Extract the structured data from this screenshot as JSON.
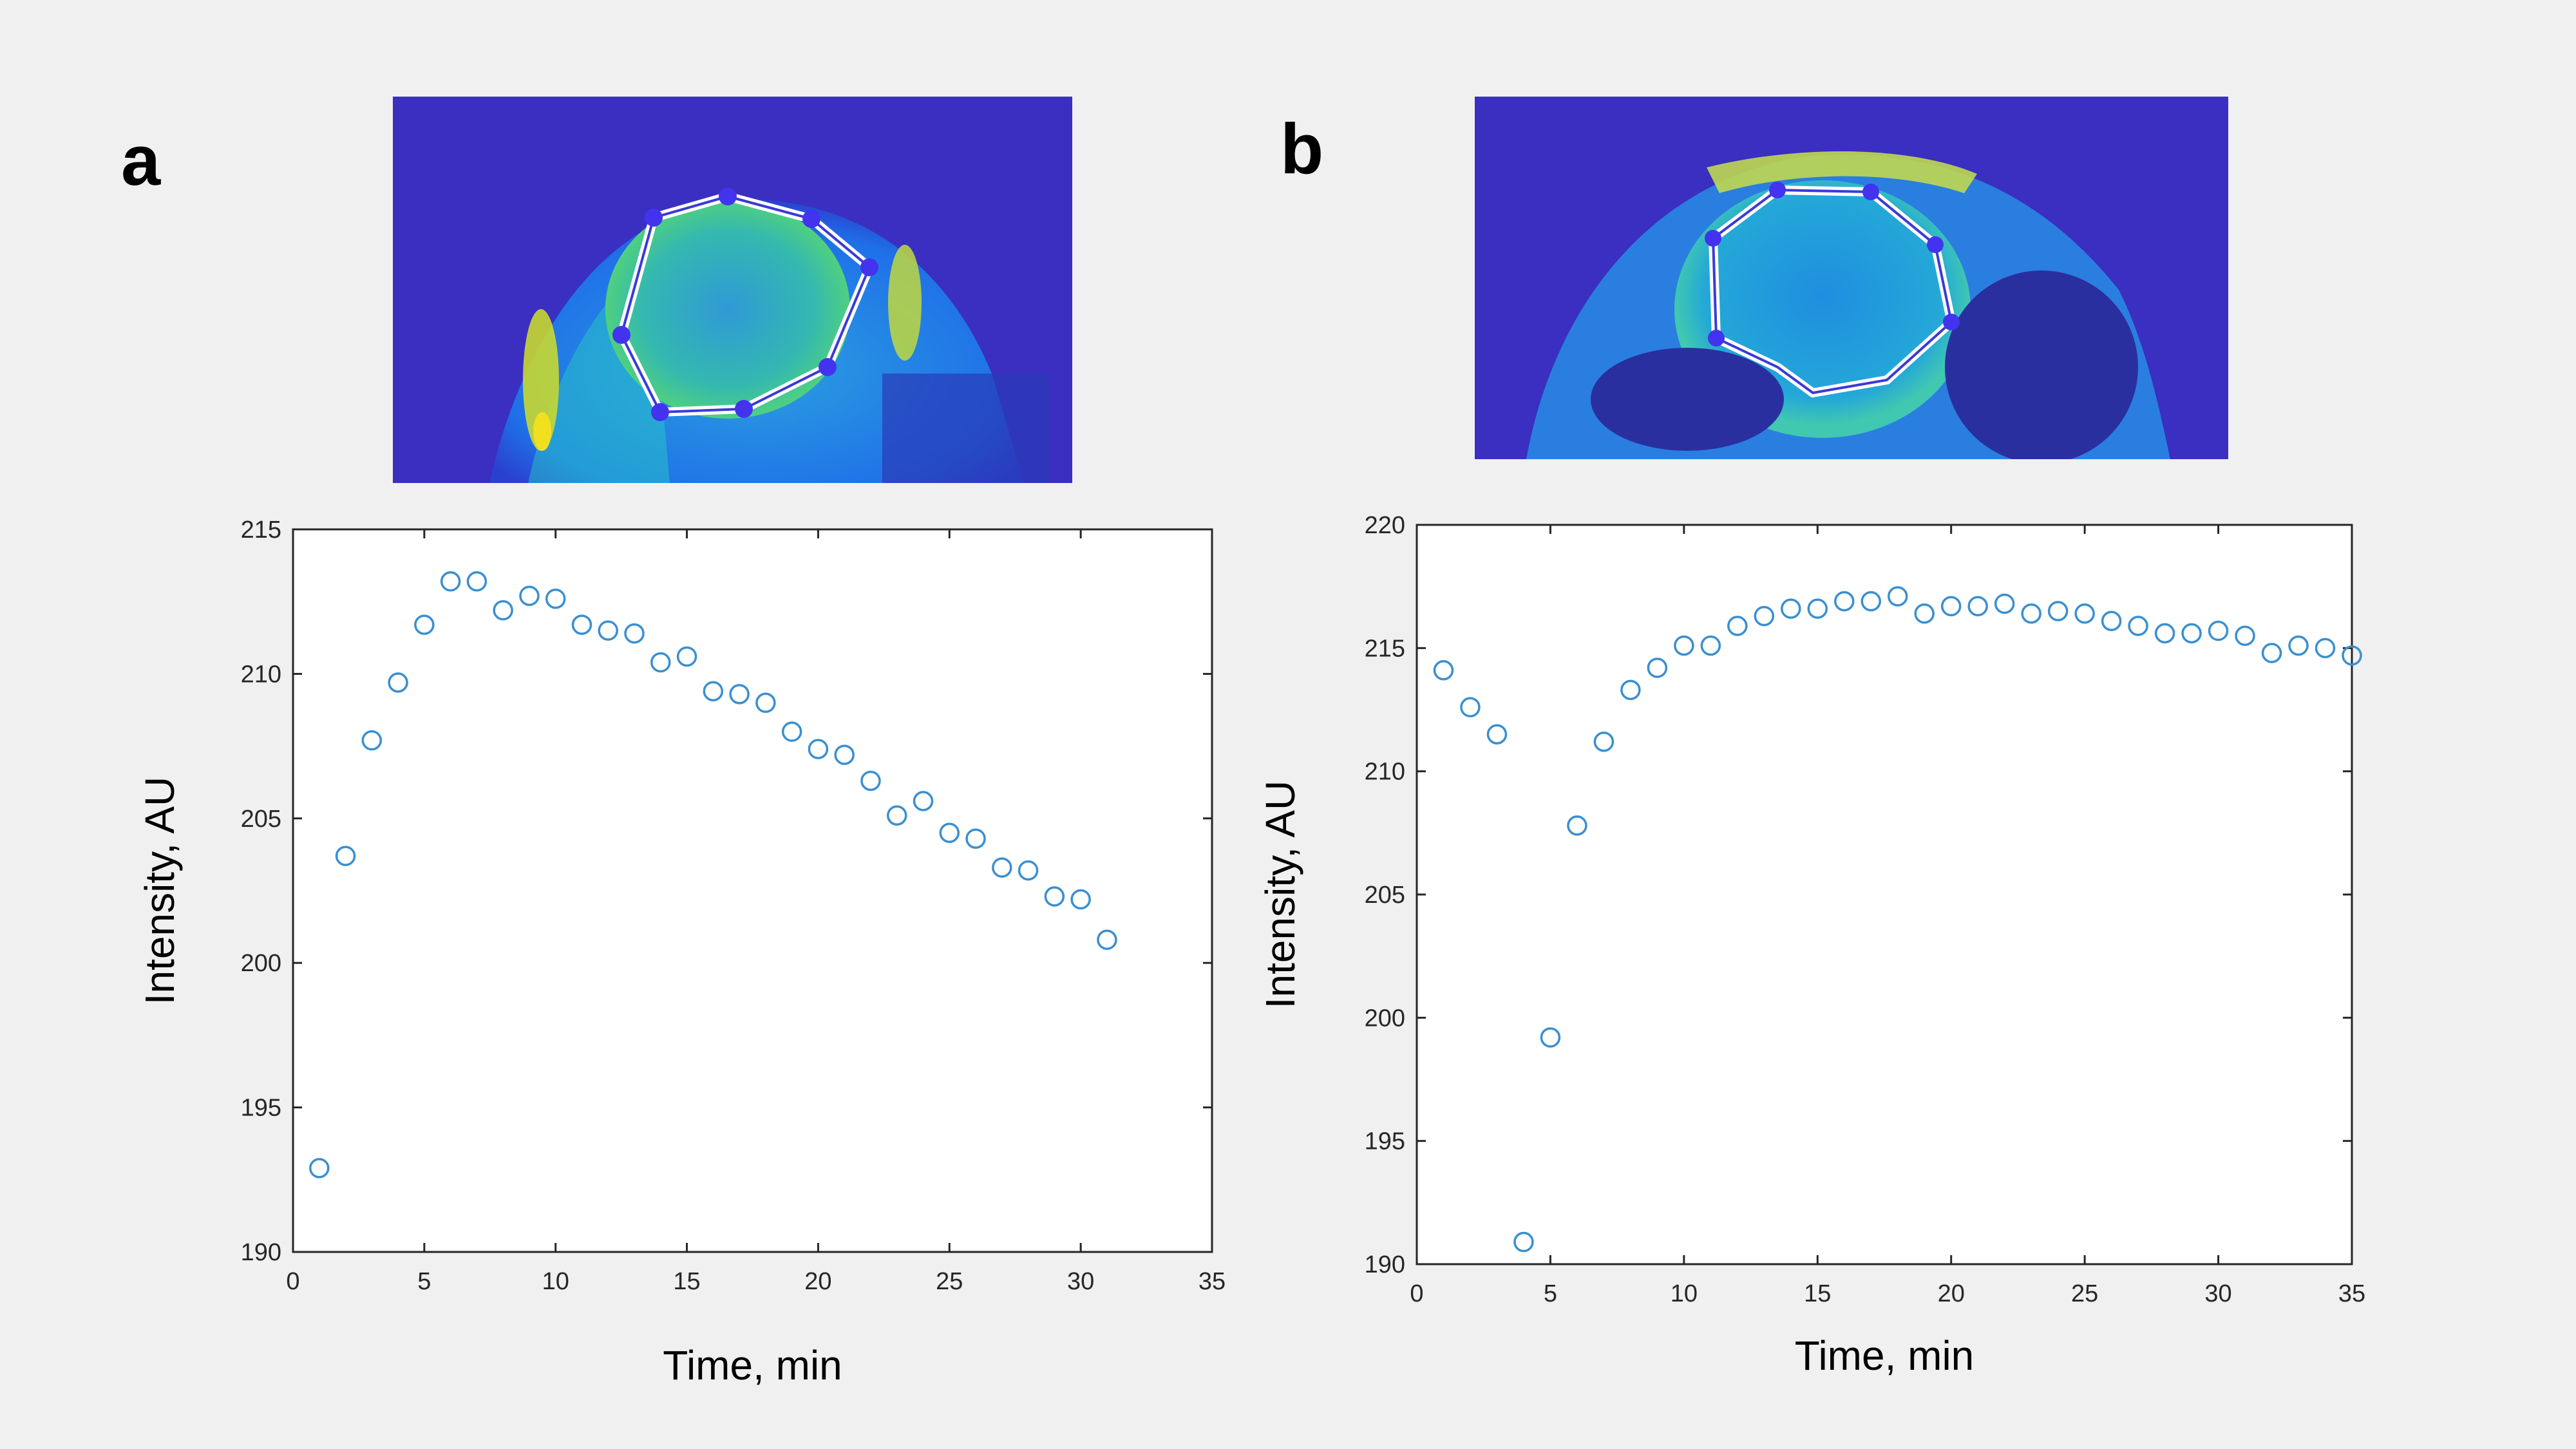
{
  "panels": {
    "a": {
      "letter": "a",
      "image_description_icon": "mri-heatmap-icon"
    },
    "b": {
      "letter": "b",
      "image_description_icon": "mri-heatmap-icon"
    }
  },
  "colors": {
    "marker": "#3a8fd0",
    "heat_background": "#3a2fc0",
    "roi_outline": "#ffffff",
    "roi_vertex": "#4433ee"
  },
  "chart_data": [
    {
      "type": "scatter",
      "panel": "a",
      "title": "",
      "xlabel": "Time, min",
      "ylabel": "Intensity, AU",
      "xlim": [
        0,
        35
      ],
      "ylim": [
        190,
        215
      ],
      "xticks": [
        0,
        5,
        10,
        15,
        20,
        25,
        30,
        35
      ],
      "yticks": [
        190,
        195,
        200,
        205,
        210,
        215
      ],
      "grid": false,
      "marker": "open-circle",
      "x": [
        1,
        2,
        3,
        4,
        5,
        6,
        7,
        8,
        9,
        10,
        11,
        12,
        13,
        14,
        15,
        16,
        17,
        18,
        19,
        20,
        21,
        22,
        23,
        24,
        25,
        26,
        27,
        28,
        29,
        30,
        31
      ],
      "y": [
        192.9,
        203.7,
        207.7,
        209.7,
        211.7,
        213.2,
        213.2,
        212.2,
        212.7,
        212.6,
        211.7,
        211.5,
        211.4,
        210.4,
        210.6,
        209.4,
        209.3,
        209.0,
        208.0,
        207.4,
        207.2,
        206.3,
        205.1,
        205.6,
        204.5,
        204.3,
        203.3,
        203.2,
        202.3,
        202.2,
        200.8
      ]
    },
    {
      "type": "scatter",
      "panel": "b",
      "title": "",
      "xlabel": "Time, min",
      "ylabel": "Intensity, AU",
      "xlim": [
        0,
        35
      ],
      "ylim": [
        190,
        220
      ],
      "xticks": [
        0,
        5,
        10,
        15,
        20,
        25,
        30,
        35
      ],
      "yticks": [
        190,
        195,
        200,
        205,
        210,
        215,
        220
      ],
      "grid": false,
      "marker": "open-circle",
      "x": [
        1,
        2,
        3,
        4,
        5,
        6,
        7,
        8,
        9,
        10,
        11,
        12,
        13,
        14,
        15,
        16,
        17,
        18,
        19,
        20,
        21,
        22,
        23,
        24,
        25,
        26,
        27,
        28,
        29,
        30,
        31,
        32,
        33,
        34,
        35
      ],
      "y": [
        214.1,
        212.6,
        211.5,
        190.9,
        199.2,
        207.8,
        211.2,
        213.3,
        214.2,
        215.1,
        215.1,
        215.9,
        216.3,
        216.6,
        216.6,
        216.9,
        216.9,
        217.1,
        216.4,
        216.7,
        216.7,
        216.8,
        216.4,
        216.5,
        216.4,
        216.1,
        215.9,
        215.6,
        215.6,
        215.7,
        215.5,
        214.8,
        215.1,
        215.0,
        214.7
      ]
    }
  ]
}
